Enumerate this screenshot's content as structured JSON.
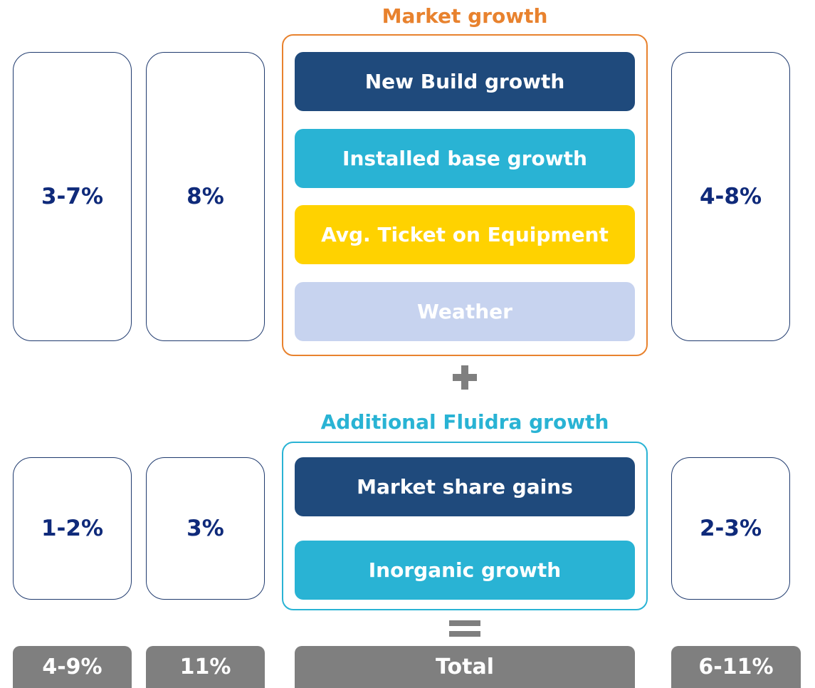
{
  "market": {
    "title": "Market growth",
    "items": [
      "New Build growth",
      "Installed base growth",
      "Avg. Ticket on Equipment",
      "Weather"
    ],
    "values": [
      "3-7%",
      "8%",
      "4-8%"
    ]
  },
  "additional": {
    "title": "Additional Fluidra growth",
    "items": [
      "Market share gains",
      "Inorganic growth"
    ],
    "values": [
      "1-2%",
      "3%",
      "2-3%"
    ]
  },
  "total": {
    "label": "Total",
    "values": [
      "4-9%",
      "11%",
      "6-11%"
    ]
  }
}
